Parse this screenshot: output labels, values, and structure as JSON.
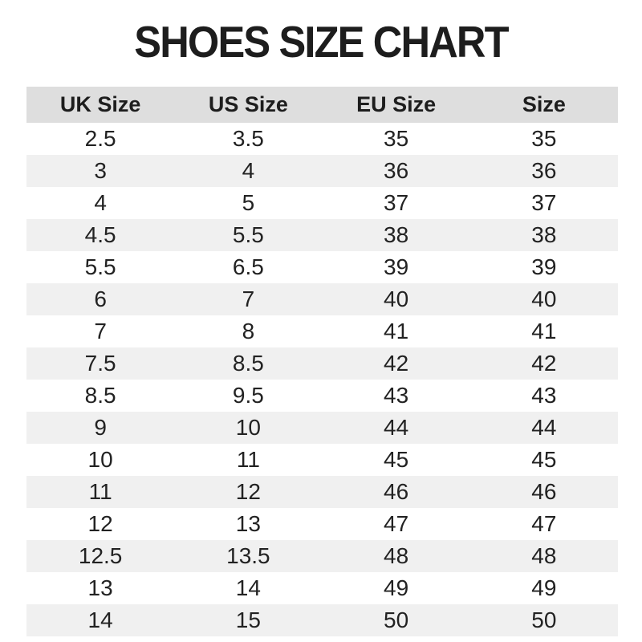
{
  "title": "SHOES SIZE CHART",
  "colors": {
    "page_bg": "#ffffff",
    "header_bg": "#dedede",
    "row_alt_bg": "#f0f0f0",
    "text": "#222222",
    "title_text": "#1d1d1d"
  },
  "chart_data": {
    "type": "table",
    "title": "SHOES SIZE CHART",
    "columns": [
      "UK Size",
      "US Size",
      "EU Size",
      "Size"
    ],
    "rows": [
      [
        "2.5",
        "3.5",
        "35",
        "35"
      ],
      [
        "3",
        "4",
        "36",
        "36"
      ],
      [
        "4",
        "5",
        "37",
        "37"
      ],
      [
        "4.5",
        "5.5",
        "38",
        "38"
      ],
      [
        "5.5",
        "6.5",
        "39",
        "39"
      ],
      [
        "6",
        "7",
        "40",
        "40"
      ],
      [
        "7",
        "8",
        "41",
        "41"
      ],
      [
        "7.5",
        "8.5",
        "42",
        "42"
      ],
      [
        "8.5",
        "9.5",
        "43",
        "43"
      ],
      [
        "9",
        "10",
        "44",
        "44"
      ],
      [
        "10",
        "11",
        "45",
        "45"
      ],
      [
        "11",
        "12",
        "46",
        "46"
      ],
      [
        "12",
        "13",
        "47",
        "47"
      ],
      [
        "12.5",
        "13.5",
        "48",
        "48"
      ],
      [
        "13",
        "14",
        "49",
        "49"
      ],
      [
        "14",
        "15",
        "50",
        "50"
      ]
    ],
    "layout": {
      "row_striping": "even rows white, odd rows light gray",
      "first_body_row_bg": "white",
      "alignment": "center"
    }
  }
}
